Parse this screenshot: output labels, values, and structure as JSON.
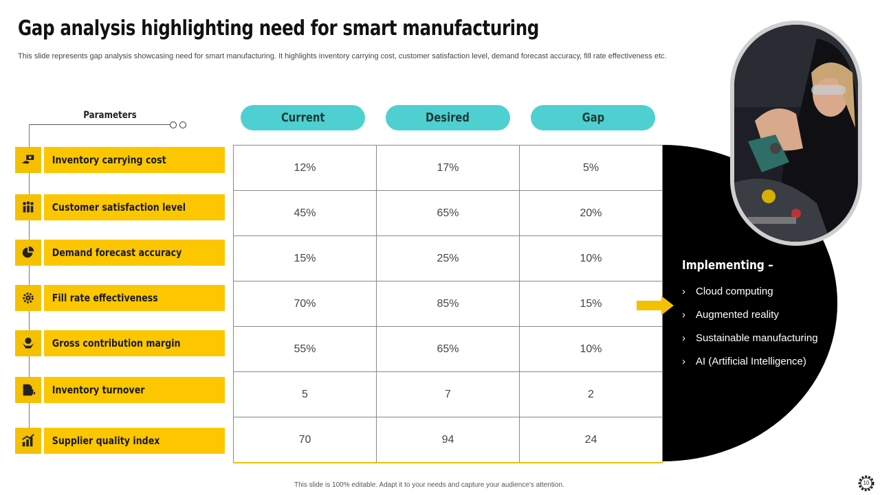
{
  "title": "Gap analysis highlighting need for smart manufacturing",
  "subtitle": "This slide represents gap analysis showcasing need for smart manufacturing. It highlights inventory carrying cost, customer satisfaction level, demand forecast accuracy, fill rate effectiveness etc.",
  "parameters_header": "Parameters",
  "columns": [
    "Current",
    "Desired",
    "Gap"
  ],
  "rows": [
    {
      "label": "Inventory carrying cost",
      "icon": "money-hand-icon",
      "values": [
        "12%",
        "17%",
        "5%"
      ]
    },
    {
      "label": "Customer satisfaction level",
      "icon": "people-group-icon",
      "values": [
        "45%",
        "65%",
        "20%"
      ]
    },
    {
      "label": "Demand forecast accuracy",
      "icon": "pie-chart-icon",
      "values": [
        "15%",
        "25%",
        "10%"
      ]
    },
    {
      "label": "Fill rate effectiveness",
      "icon": "gear-icon",
      "values": [
        "70%",
        "85%",
        "15%"
      ]
    },
    {
      "label": "Gross contribution margin",
      "icon": "hand-dollar-icon",
      "values": [
        "55%",
        "65%",
        "10%"
      ]
    },
    {
      "label": "Inventory turnover",
      "icon": "document-chart-icon",
      "values": [
        "5",
        "7",
        "2"
      ]
    },
    {
      "label": "Supplier quality index",
      "icon": "bar-chart-icon",
      "values": [
        "70",
        "94",
        "24"
      ]
    }
  ],
  "implementing": {
    "title": "Implementing –",
    "items": [
      "Cloud computing",
      "Augmented reality",
      "Sustainable manufacturing",
      "AI (Artificial Intelligence)"
    ]
  },
  "footer": "This slide is 100% editable.  Adapt it to your needs and capture your audience's attention.",
  "page_number": "10",
  "colors": {
    "accent_yellow": "#fcc700",
    "accent_teal": "#4fd0d0",
    "panel_black": "#000000"
  }
}
